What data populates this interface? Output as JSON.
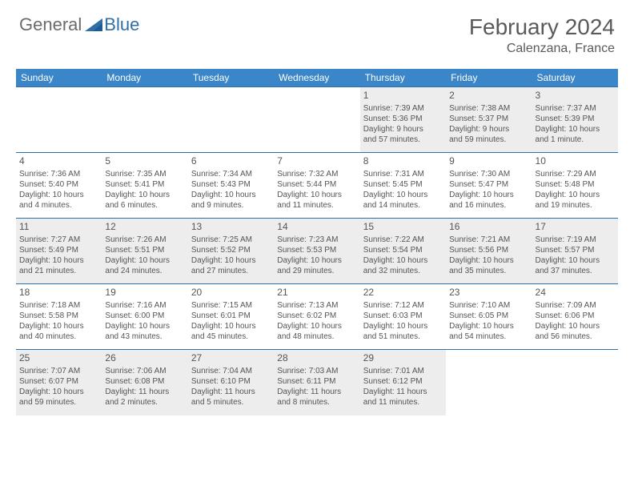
{
  "logo": {
    "general": "General",
    "blue": "Blue"
  },
  "title": "February 2024",
  "location": "Calenzana, France",
  "dayHeaders": [
    "Sunday",
    "Monday",
    "Tuesday",
    "Wednesday",
    "Thursday",
    "Friday",
    "Saturday"
  ],
  "colors": {
    "headerBg": "#3a86c8",
    "rowBorder": "#2f6fa8",
    "shadedBg": "#ededed",
    "textGray": "#555555",
    "logoBlue": "#2f6fa8",
    "logoGray": "#6b6b6b"
  },
  "weeks": [
    [
      null,
      null,
      null,
      null,
      {
        "n": "1",
        "sr": "Sunrise: 7:39 AM",
        "ss": "Sunset: 5:36 PM",
        "dl1": "Daylight: 9 hours",
        "dl2": "and 57 minutes."
      },
      {
        "n": "2",
        "sr": "Sunrise: 7:38 AM",
        "ss": "Sunset: 5:37 PM",
        "dl1": "Daylight: 9 hours",
        "dl2": "and 59 minutes."
      },
      {
        "n": "3",
        "sr": "Sunrise: 7:37 AM",
        "ss": "Sunset: 5:39 PM",
        "dl1": "Daylight: 10 hours",
        "dl2": "and 1 minute."
      }
    ],
    [
      {
        "n": "4",
        "sr": "Sunrise: 7:36 AM",
        "ss": "Sunset: 5:40 PM",
        "dl1": "Daylight: 10 hours",
        "dl2": "and 4 minutes."
      },
      {
        "n": "5",
        "sr": "Sunrise: 7:35 AM",
        "ss": "Sunset: 5:41 PM",
        "dl1": "Daylight: 10 hours",
        "dl2": "and 6 minutes."
      },
      {
        "n": "6",
        "sr": "Sunrise: 7:34 AM",
        "ss": "Sunset: 5:43 PM",
        "dl1": "Daylight: 10 hours",
        "dl2": "and 9 minutes."
      },
      {
        "n": "7",
        "sr": "Sunrise: 7:32 AM",
        "ss": "Sunset: 5:44 PM",
        "dl1": "Daylight: 10 hours",
        "dl2": "and 11 minutes."
      },
      {
        "n": "8",
        "sr": "Sunrise: 7:31 AM",
        "ss": "Sunset: 5:45 PM",
        "dl1": "Daylight: 10 hours",
        "dl2": "and 14 minutes."
      },
      {
        "n": "9",
        "sr": "Sunrise: 7:30 AM",
        "ss": "Sunset: 5:47 PM",
        "dl1": "Daylight: 10 hours",
        "dl2": "and 16 minutes."
      },
      {
        "n": "10",
        "sr": "Sunrise: 7:29 AM",
        "ss": "Sunset: 5:48 PM",
        "dl1": "Daylight: 10 hours",
        "dl2": "and 19 minutes."
      }
    ],
    [
      {
        "n": "11",
        "sr": "Sunrise: 7:27 AM",
        "ss": "Sunset: 5:49 PM",
        "dl1": "Daylight: 10 hours",
        "dl2": "and 21 minutes."
      },
      {
        "n": "12",
        "sr": "Sunrise: 7:26 AM",
        "ss": "Sunset: 5:51 PM",
        "dl1": "Daylight: 10 hours",
        "dl2": "and 24 minutes."
      },
      {
        "n": "13",
        "sr": "Sunrise: 7:25 AM",
        "ss": "Sunset: 5:52 PM",
        "dl1": "Daylight: 10 hours",
        "dl2": "and 27 minutes."
      },
      {
        "n": "14",
        "sr": "Sunrise: 7:23 AM",
        "ss": "Sunset: 5:53 PM",
        "dl1": "Daylight: 10 hours",
        "dl2": "and 29 minutes."
      },
      {
        "n": "15",
        "sr": "Sunrise: 7:22 AM",
        "ss": "Sunset: 5:54 PM",
        "dl1": "Daylight: 10 hours",
        "dl2": "and 32 minutes."
      },
      {
        "n": "16",
        "sr": "Sunrise: 7:21 AM",
        "ss": "Sunset: 5:56 PM",
        "dl1": "Daylight: 10 hours",
        "dl2": "and 35 minutes."
      },
      {
        "n": "17",
        "sr": "Sunrise: 7:19 AM",
        "ss": "Sunset: 5:57 PM",
        "dl1": "Daylight: 10 hours",
        "dl2": "and 37 minutes."
      }
    ],
    [
      {
        "n": "18",
        "sr": "Sunrise: 7:18 AM",
        "ss": "Sunset: 5:58 PM",
        "dl1": "Daylight: 10 hours",
        "dl2": "and 40 minutes."
      },
      {
        "n": "19",
        "sr": "Sunrise: 7:16 AM",
        "ss": "Sunset: 6:00 PM",
        "dl1": "Daylight: 10 hours",
        "dl2": "and 43 minutes."
      },
      {
        "n": "20",
        "sr": "Sunrise: 7:15 AM",
        "ss": "Sunset: 6:01 PM",
        "dl1": "Daylight: 10 hours",
        "dl2": "and 45 minutes."
      },
      {
        "n": "21",
        "sr": "Sunrise: 7:13 AM",
        "ss": "Sunset: 6:02 PM",
        "dl1": "Daylight: 10 hours",
        "dl2": "and 48 minutes."
      },
      {
        "n": "22",
        "sr": "Sunrise: 7:12 AM",
        "ss": "Sunset: 6:03 PM",
        "dl1": "Daylight: 10 hours",
        "dl2": "and 51 minutes."
      },
      {
        "n": "23",
        "sr": "Sunrise: 7:10 AM",
        "ss": "Sunset: 6:05 PM",
        "dl1": "Daylight: 10 hours",
        "dl2": "and 54 minutes."
      },
      {
        "n": "24",
        "sr": "Sunrise: 7:09 AM",
        "ss": "Sunset: 6:06 PM",
        "dl1": "Daylight: 10 hours",
        "dl2": "and 56 minutes."
      }
    ],
    [
      {
        "n": "25",
        "sr": "Sunrise: 7:07 AM",
        "ss": "Sunset: 6:07 PM",
        "dl1": "Daylight: 10 hours",
        "dl2": "and 59 minutes."
      },
      {
        "n": "26",
        "sr": "Sunrise: 7:06 AM",
        "ss": "Sunset: 6:08 PM",
        "dl1": "Daylight: 11 hours",
        "dl2": "and 2 minutes."
      },
      {
        "n": "27",
        "sr": "Sunrise: 7:04 AM",
        "ss": "Sunset: 6:10 PM",
        "dl1": "Daylight: 11 hours",
        "dl2": "and 5 minutes."
      },
      {
        "n": "28",
        "sr": "Sunrise: 7:03 AM",
        "ss": "Sunset: 6:11 PM",
        "dl1": "Daylight: 11 hours",
        "dl2": "and 8 minutes."
      },
      {
        "n": "29",
        "sr": "Sunrise: 7:01 AM",
        "ss": "Sunset: 6:12 PM",
        "dl1": "Daylight: 11 hours",
        "dl2": "and 11 minutes."
      },
      null,
      null
    ]
  ],
  "shadedWeeks": [
    0,
    2,
    4
  ]
}
